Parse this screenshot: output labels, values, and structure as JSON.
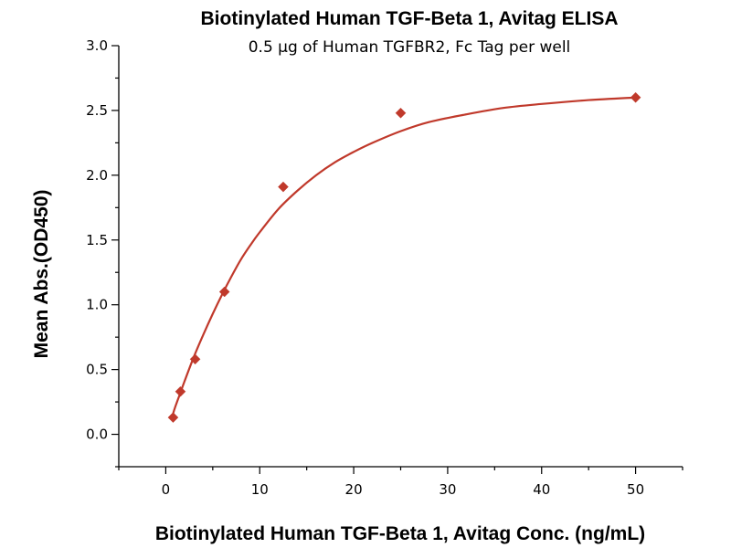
{
  "chart_data": {
    "type": "scatter",
    "title": "Biotinylated Human TGF-Beta 1, Avitag ELISA",
    "subtitle": "0.5 μg of Human TGFBR2, Fc Tag per well",
    "xlabel": "Biotinylated Human TGF-Beta 1, Avitag Conc. (ng/mL)",
    "ylabel": "Mean Abs.(OD450)",
    "xlim": [
      -5,
      55
    ],
    "ylim": [
      -0.25,
      3.0
    ],
    "x_ticks": [
      0,
      10,
      20,
      30,
      40,
      50
    ],
    "x_tick_labels": [
      "0",
      "10",
      "20",
      "30",
      "40",
      "50"
    ],
    "y_ticks": [
      0.0,
      0.5,
      1.0,
      1.5,
      2.0,
      2.5,
      3.0
    ],
    "y_tick_labels": [
      "0.0",
      "0.5",
      "1.0",
      "1.5",
      "2.0",
      "2.5",
      "3.0"
    ],
    "grid": false,
    "legend": "none",
    "marker": "diamond",
    "color": "#c0392b",
    "series": [
      {
        "x": [
          0.78,
          1.56,
          3.125,
          6.25,
          12.5,
          25,
          50
        ],
        "y": [
          0.13,
          0.33,
          0.58,
          1.1,
          1.91,
          2.48,
          2.6
        ]
      }
    ],
    "fit_curve": {
      "type": "4PL",
      "x": [
        0.78,
        1.0,
        1.5,
        2.0,
        3.0,
        4.0,
        5.0,
        6.0,
        7.0,
        8.0,
        9.0,
        10.0,
        12.0,
        14.0,
        16.0,
        18.0,
        20.0,
        22.0,
        25.0,
        28.0,
        32.0,
        36.0,
        40.0,
        45.0,
        50.0
      ],
      "y": [
        0.16,
        0.21,
        0.31,
        0.41,
        0.6,
        0.77,
        0.93,
        1.08,
        1.22,
        1.35,
        1.46,
        1.56,
        1.74,
        1.88,
        2.0,
        2.1,
        2.18,
        2.25,
        2.34,
        2.41,
        2.47,
        2.52,
        2.55,
        2.58,
        2.6
      ]
    }
  }
}
